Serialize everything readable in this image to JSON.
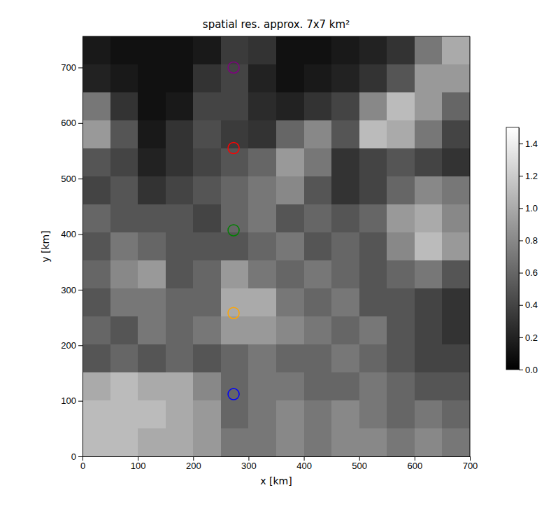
{
  "chart_data": {
    "type": "heatmap",
    "title": "spatial res. approx. 7x7 km²",
    "x_label": "x [km]",
    "y_label": "y [km]",
    "xlim": [
      0,
      700
    ],
    "ylim": [
      0,
      756
    ],
    "xticks": [
      0,
      100,
      200,
      300,
      400,
      500,
      600,
      700
    ],
    "yticks": [
      0,
      100,
      200,
      300,
      400,
      500,
      600,
      700
    ],
    "cells": [
      [
        0.15,
        0.1,
        0.1,
        0.1,
        0.15,
        0.35,
        0.3,
        0.1,
        0.1,
        0.15,
        0.2,
        0.3,
        0.7,
        1.0
      ],
      [
        0.2,
        0.15,
        0.1,
        0.1,
        0.3,
        0.4,
        0.2,
        0.1,
        0.15,
        0.2,
        0.3,
        0.5,
        0.9,
        0.9
      ],
      [
        0.7,
        0.3,
        0.1,
        0.15,
        0.4,
        0.4,
        0.25,
        0.2,
        0.3,
        0.4,
        0.8,
        1.1,
        0.9,
        0.6
      ],
      [
        0.9,
        0.5,
        0.15,
        0.3,
        0.45,
        0.35,
        0.3,
        0.6,
        0.8,
        0.5,
        1.1,
        1.0,
        0.7,
        0.4
      ],
      [
        0.5,
        0.4,
        0.2,
        0.3,
        0.4,
        0.5,
        0.6,
        0.9,
        0.7,
        0.3,
        0.4,
        0.5,
        0.4,
        0.3
      ],
      [
        0.4,
        0.5,
        0.3,
        0.4,
        0.5,
        0.6,
        0.7,
        0.8,
        0.5,
        0.3,
        0.4,
        0.6,
        0.8,
        0.7
      ],
      [
        0.6,
        0.5,
        0.5,
        0.5,
        0.4,
        0.6,
        0.7,
        0.5,
        0.6,
        0.5,
        0.6,
        0.9,
        1.0,
        0.8
      ],
      [
        0.5,
        0.7,
        0.6,
        0.5,
        0.5,
        0.5,
        0.6,
        0.7,
        0.5,
        0.6,
        0.5,
        0.8,
        1.1,
        0.9
      ],
      [
        0.6,
        0.8,
        0.9,
        0.5,
        0.6,
        0.9,
        0.7,
        0.6,
        0.7,
        0.6,
        0.5,
        0.6,
        0.7,
        0.5
      ],
      [
        0.5,
        0.7,
        0.7,
        0.6,
        0.6,
        1.0,
        1.0,
        0.7,
        0.6,
        0.7,
        0.5,
        0.5,
        0.4,
        0.3
      ],
      [
        0.6,
        0.5,
        0.7,
        0.6,
        0.7,
        0.9,
        0.9,
        0.8,
        0.7,
        0.6,
        0.7,
        0.5,
        0.4,
        0.3
      ],
      [
        0.5,
        0.6,
        0.5,
        0.6,
        0.5,
        0.6,
        0.7,
        0.6,
        0.6,
        0.7,
        0.6,
        0.5,
        0.4,
        0.4
      ],
      [
        1.0,
        1.1,
        1.0,
        1.0,
        0.8,
        0.6,
        0.7,
        0.7,
        0.6,
        0.6,
        0.7,
        0.6,
        0.5,
        0.5
      ],
      [
        1.1,
        1.1,
        1.1,
        1.0,
        0.9,
        0.6,
        0.7,
        0.8,
        0.7,
        0.8,
        0.7,
        0.6,
        0.7,
        0.6
      ],
      [
        1.1,
        1.1,
        1.0,
        1.0,
        0.9,
        0.7,
        0.7,
        0.8,
        0.7,
        0.8,
        0.8,
        0.7,
        0.8,
        0.7
      ]
    ],
    "colorbar": {
      "range": [
        0,
        1.5
      ],
      "ticks": [
        {
          "value": 0,
          "label": "0.0"
        },
        {
          "value": 0.2,
          "label": "0.2"
        },
        {
          "value": 0.4,
          "label": "0.4"
        },
        {
          "value": 0.6,
          "label": "0.6"
        },
        {
          "value": 0.8,
          "label": "0.8"
        },
        {
          "value": 1.0,
          "label": "1.0"
        },
        {
          "value": 1.2,
          "label": "1.2"
        },
        {
          "value": 1.4,
          "label": "1.4"
        }
      ]
    },
    "points": {
      "x": [
        273,
        273,
        273,
        273,
        273
      ],
      "y": [
        112,
        258,
        407,
        555,
        700
      ],
      "colors": [
        "#0000ff",
        "#ffa500",
        "#008000",
        "#ff0000",
        "#800080"
      ],
      "marker": "circle"
    }
  }
}
